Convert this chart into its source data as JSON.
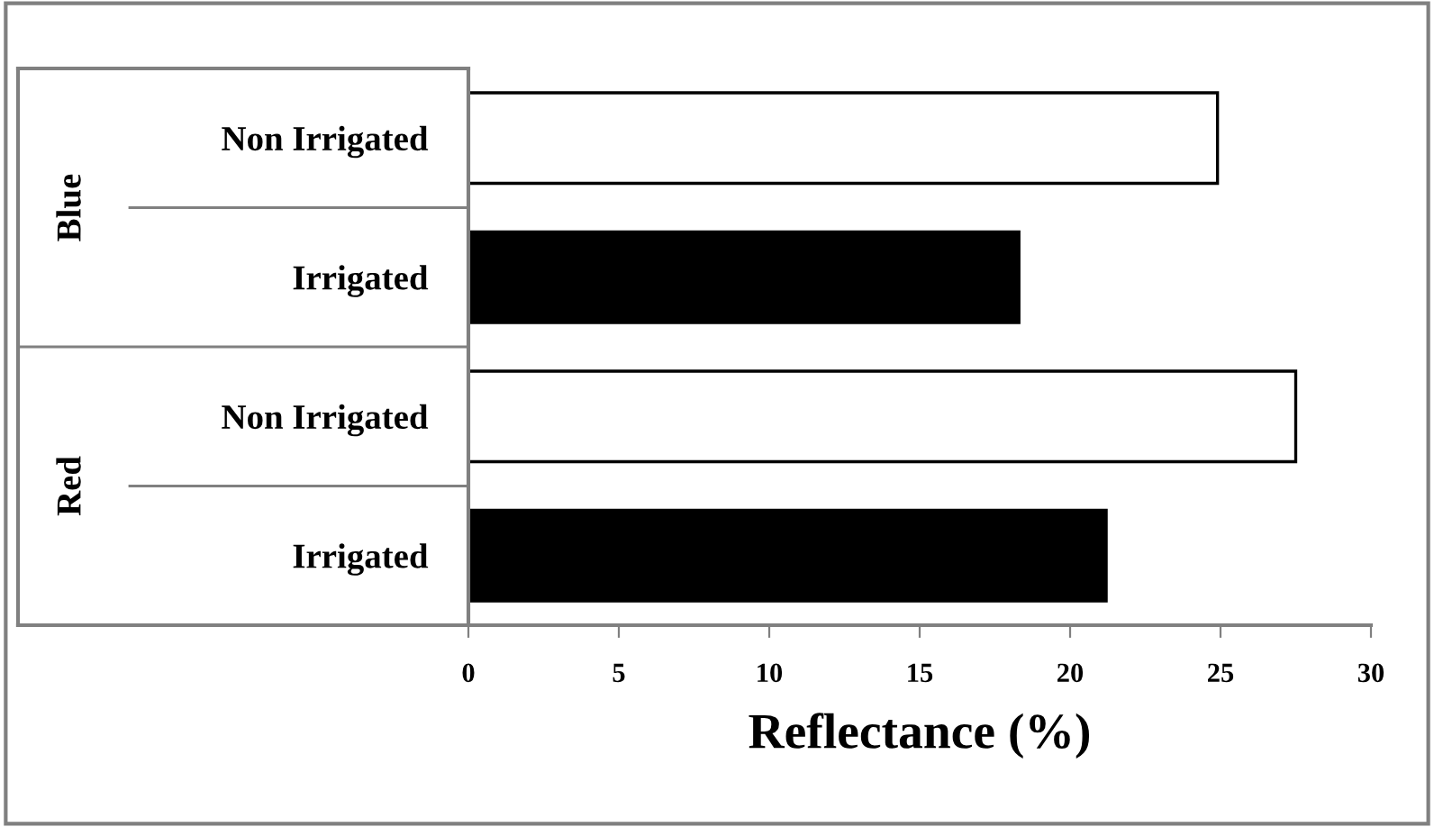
{
  "chart_data": {
    "type": "bar",
    "orientation": "horizontal",
    "categories": [
      "Non Irrigated",
      "Irrigated",
      "Non Irrigated",
      "Irrigated"
    ],
    "values": [
      24.9,
      18.3,
      27.5,
      21.2
    ],
    "colors": [
      "#ffffff",
      "#000000",
      "#ffffff",
      "#000000"
    ],
    "xlabel": "Reflectance (%)",
    "xlim": [
      0,
      30
    ],
    "xticks": [
      0,
      5,
      10,
      15,
      20,
      25,
      30
    ],
    "annotations": [
      "Blue",
      "Red"
    ],
    "grid": false,
    "legend": false
  }
}
